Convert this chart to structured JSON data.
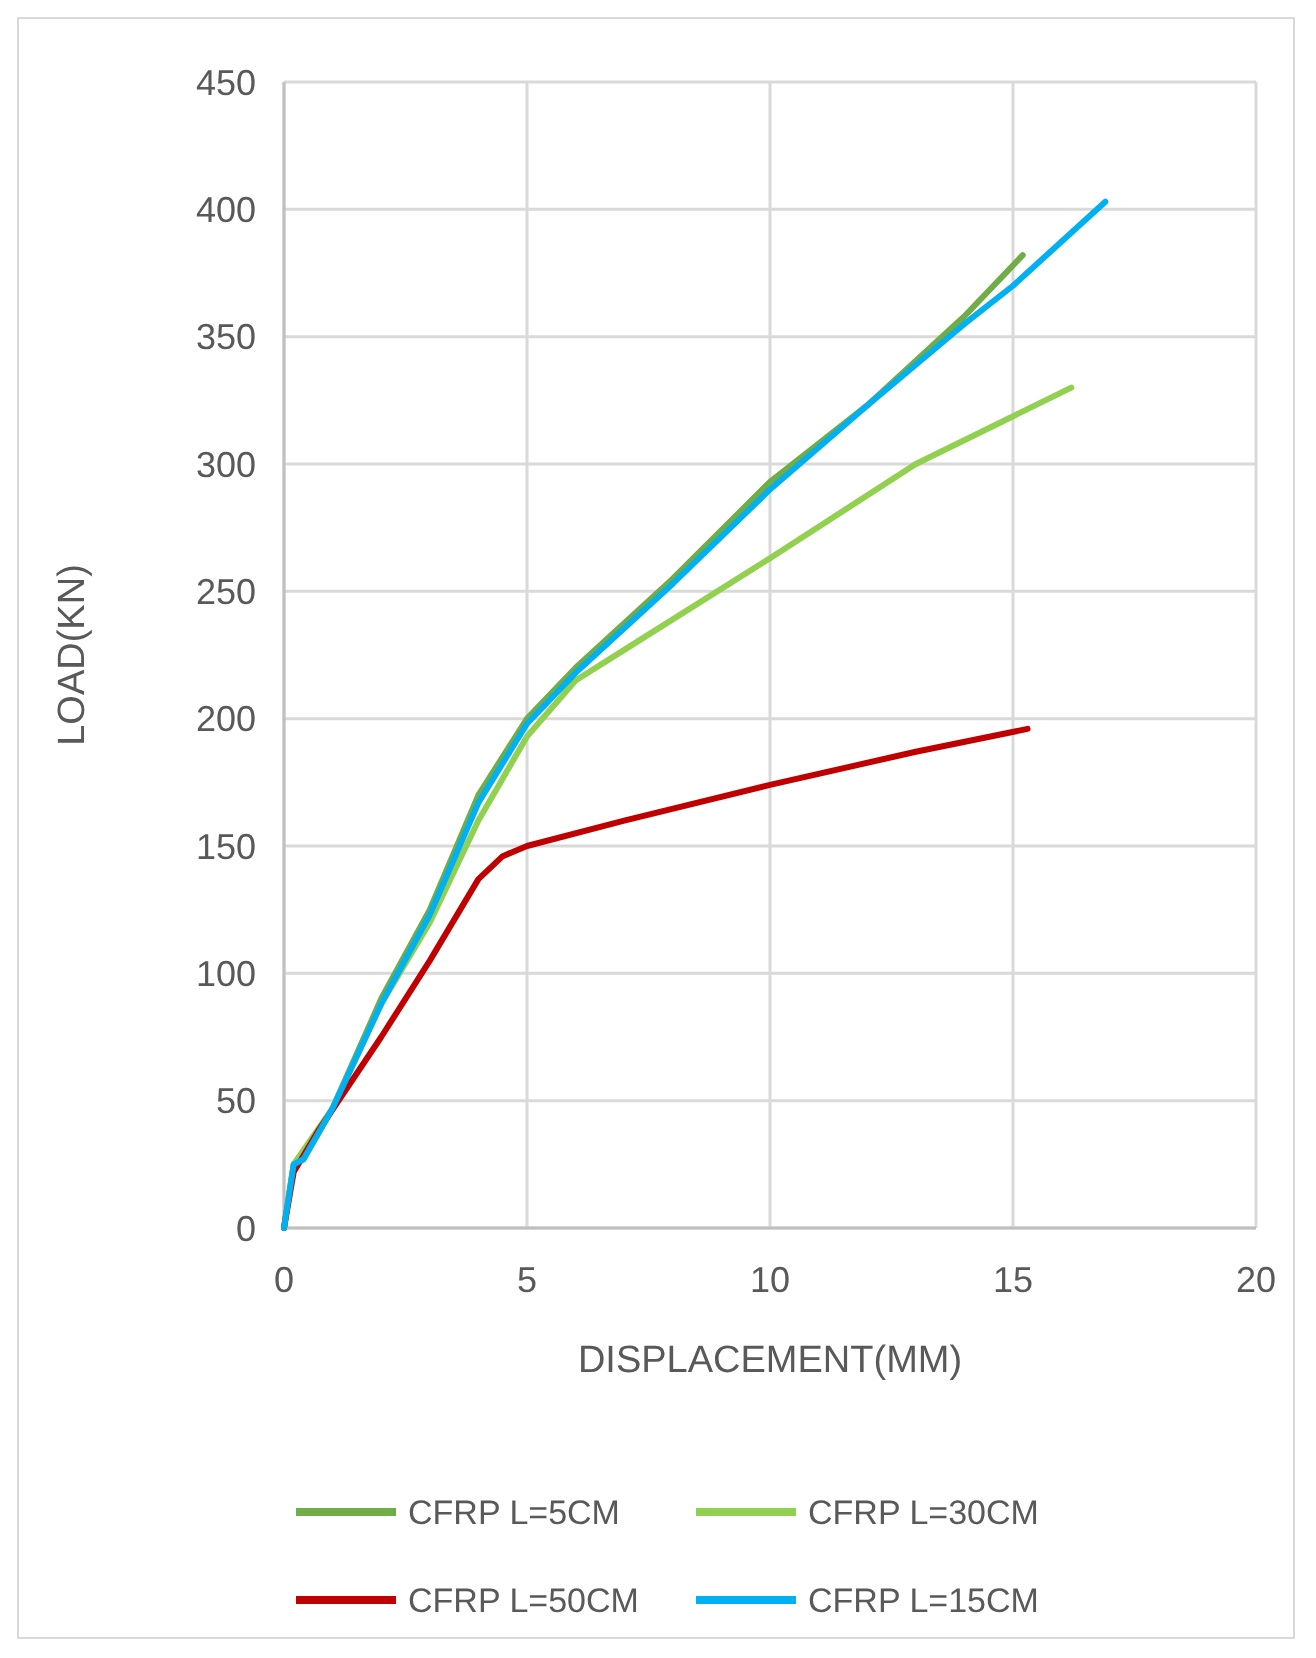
{
  "chart_data": {
    "type": "line",
    "xlabel": "DISPLACEMENT(MM)",
    "ylabel": "LOAD(KN)",
    "xlim": [
      0,
      20
    ],
    "ylim": [
      0,
      450
    ],
    "xticks": [
      0,
      5,
      10,
      15,
      20
    ],
    "yticks": [
      0,
      50,
      100,
      150,
      200,
      250,
      300,
      350,
      400,
      450
    ],
    "grid": true,
    "legend": "bottom",
    "marker": "none",
    "line_style": "solid",
    "series": [
      {
        "name": "CFRP L=5CM",
        "color": "#70ad47",
        "x": [
          0,
          0.2,
          0.4,
          1,
          2,
          3,
          4,
          5,
          6,
          8,
          10,
          12,
          14,
          15.2
        ],
        "values": [
          0,
          25,
          27,
          47,
          90,
          125,
          170,
          200,
          220,
          255,
          293,
          323,
          358,
          382
        ]
      },
      {
        "name": "CFRP L=30CM",
        "color": "#92d050",
        "x": [
          0,
          0.2,
          1,
          2,
          3,
          4,
          5,
          6,
          7,
          10,
          13,
          16.2
        ],
        "values": [
          0,
          25,
          47,
          88,
          120,
          160,
          193,
          215,
          227,
          263,
          300,
          330
        ]
      },
      {
        "name": "CFRP L=50CM",
        "color": "#c00000",
        "x": [
          0,
          0.2,
          0.7,
          2,
          3,
          4,
          4.5,
          5,
          7,
          10,
          13,
          15.3
        ],
        "values": [
          0,
          22,
          38,
          75,
          105,
          137,
          146,
          150,
          160,
          174,
          187,
          196
        ]
      },
      {
        "name": "CFRP L=15CM",
        "color": "#00b0f0",
        "x": [
          0,
          0.2,
          0.4,
          1,
          2,
          3,
          4,
          5,
          6,
          8,
          10,
          12,
          14,
          15,
          16.9
        ],
        "values": [
          0,
          25,
          27,
          47,
          88,
          123,
          167,
          198,
          218,
          253,
          290,
          323,
          355,
          370,
          403
        ]
      }
    ]
  }
}
